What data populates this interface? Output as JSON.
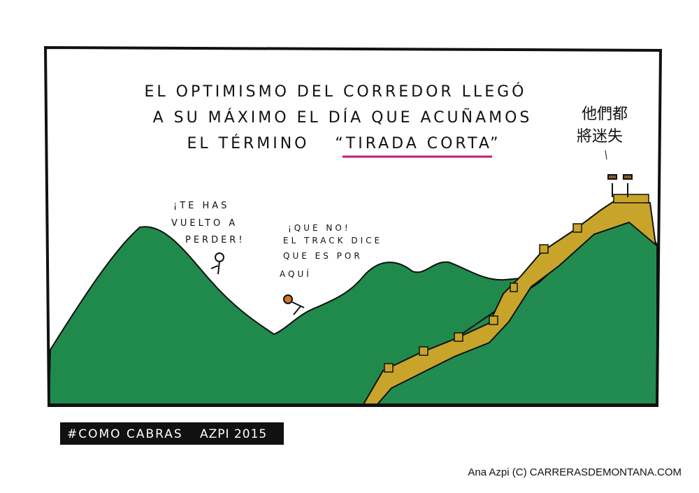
{
  "caption": {
    "lines": [
      "EL OPTIMISMO DEL CORREDOR LLEGÓ",
      "A SU MÁXIMO EL DÍA QUE ACUÑAMOS",
      "EL TÉRMINO"
    ],
    "highlight": "“TIRADA CORTA”"
  },
  "chinese": [
    "他們都",
    "將迷失"
  ],
  "speech_left": [
    "¡TE HAS",
    "VUELTO A",
    "PERDER!"
  ],
  "speech_right": [
    "¡QUE NO!",
    "EL TRACK DICE",
    "QUE ES POR",
    "AQUÍ"
  ],
  "tag": {
    "left": "#COMO CABRAS",
    "right": "AZPI 2015"
  },
  "credit": "Ana Azpi (C) CARRERASDEMONTANA.COM"
}
